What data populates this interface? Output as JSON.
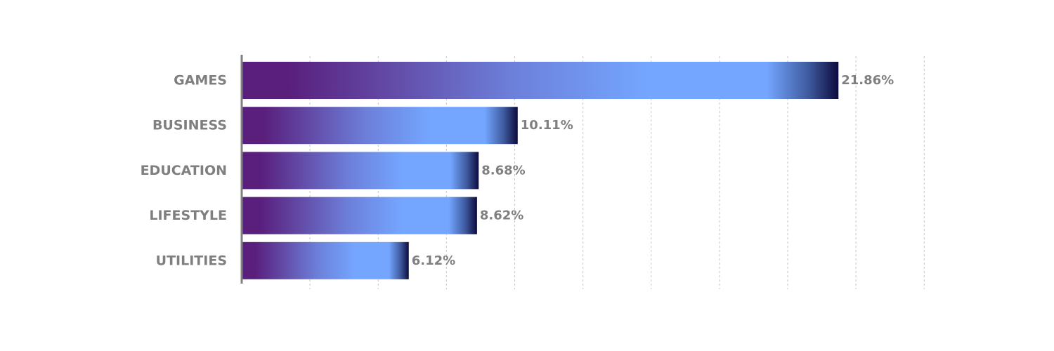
{
  "chart_data": {
    "type": "bar",
    "orientation": "horizontal",
    "categories": [
      "GAMES",
      "BUSINESS",
      "EDUCATION",
      "LIFESTYLE",
      "UTILITIES"
    ],
    "values": [
      21.86,
      10.11,
      8.68,
      8.62,
      6.12
    ],
    "value_labels": [
      "21.86%",
      "10.11%",
      "8.68%",
      "8.62%",
      "6.12%"
    ],
    "xlim": [
      0,
      25
    ],
    "grid": "vertical dashed",
    "legend": "none",
    "colors": {
      "gradient_start": "#5a1f7d",
      "gradient_mid": "#74a6ff",
      "gradient_end": "#0d0b3d",
      "label": "#7f7f7f",
      "axis": "#808080",
      "grid": "#c8c8c8"
    }
  }
}
